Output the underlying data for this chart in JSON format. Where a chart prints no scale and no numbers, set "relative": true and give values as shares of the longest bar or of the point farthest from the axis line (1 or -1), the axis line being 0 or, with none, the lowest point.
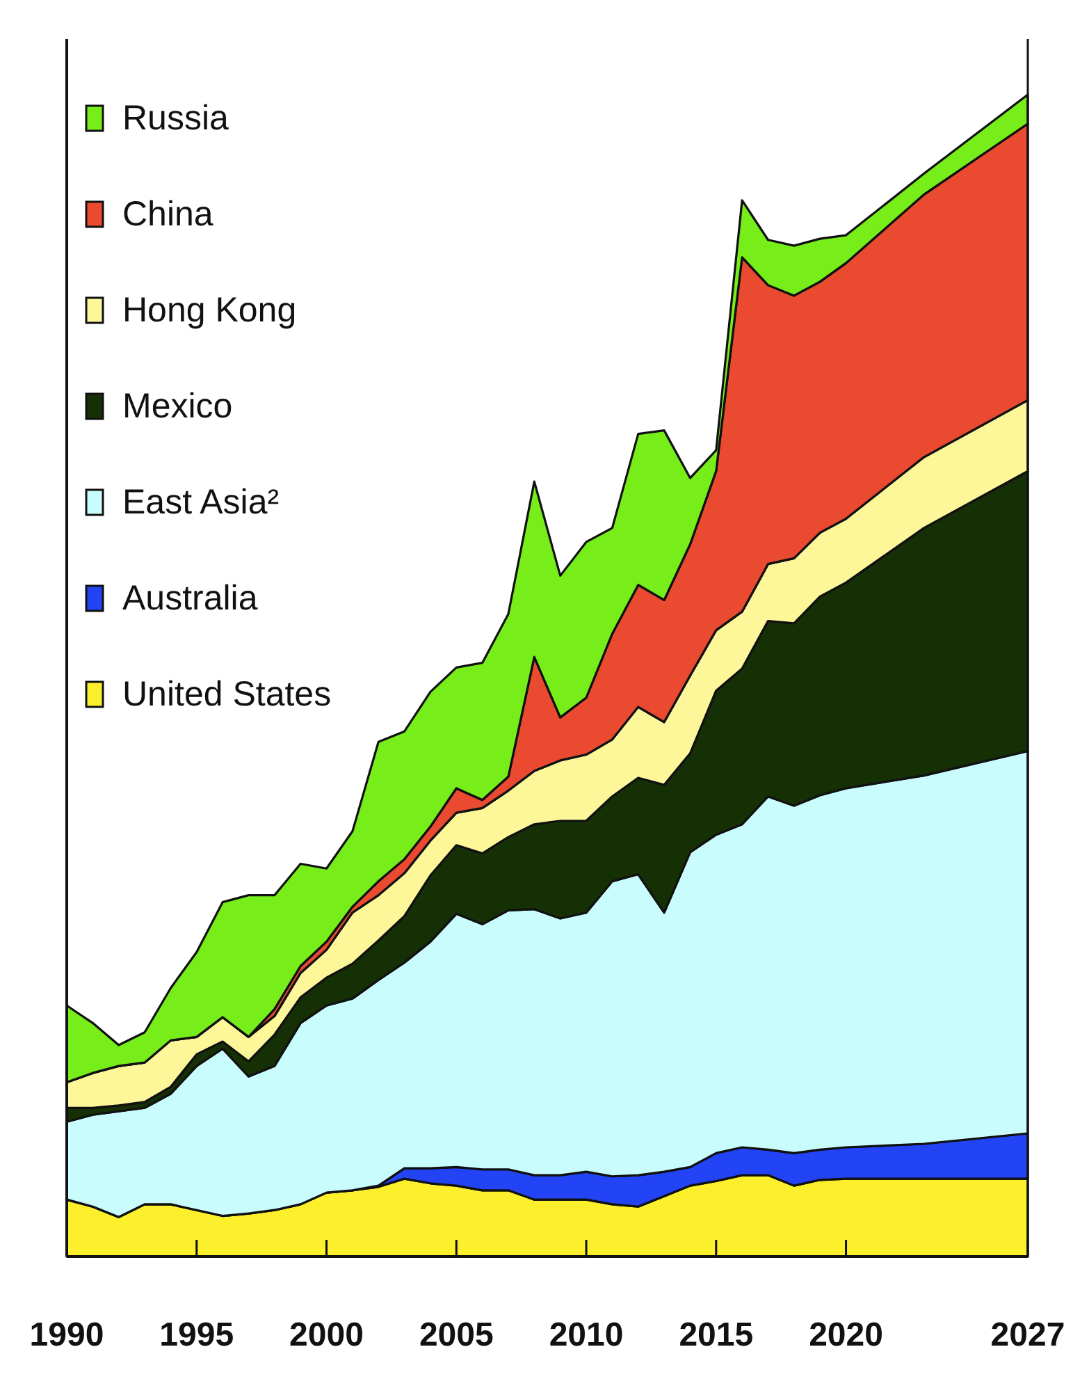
{
  "chart_data": {
    "type": "area",
    "stacked": true,
    "relative": true,
    "legend": "top left",
    "x": [
      1990,
      1991,
      1992,
      1993,
      1994,
      1995,
      1996,
      1997,
      1998,
      1999,
      2000,
      2001,
      2002,
      2003,
      2004,
      2005,
      2006,
      2007,
      2008,
      2009,
      2010,
      2011,
      2012,
      2013,
      2014,
      2015,
      2016,
      2017,
      2018,
      2019,
      2020,
      2023,
      2027
    ],
    "xlim": [
      1990,
      2027
    ],
    "xticks": [
      1990,
      1995,
      2000,
      2005,
      2010,
      2015,
      2020,
      2027
    ],
    "series": [
      {
        "name": "United States",
        "color": "#fcef2c",
        "values": [
          0.049,
          0.043,
          0.034,
          0.045,
          0.045,
          0.04,
          0.035,
          0.037,
          0.04,
          0.045,
          0.055,
          0.057,
          0.06,
          0.067,
          0.063,
          0.061,
          0.057,
          0.057,
          0.049,
          0.049,
          0.049,
          0.045,
          0.043,
          0.052,
          0.061,
          0.065,
          0.07,
          0.07,
          0.061,
          0.066,
          0.067,
          0.067,
          0.067
        ]
      },
      {
        "name": "Australia",
        "color": "#2244f5",
        "values": [
          0,
          0,
          0,
          0,
          0,
          0,
          0,
          0,
          0,
          0,
          0,
          0,
          0.001,
          0.009,
          0.013,
          0.016,
          0.018,
          0.018,
          0.021,
          0.021,
          0.024,
          0.024,
          0.027,
          0.021,
          0.016,
          0.024,
          0.024,
          0.022,
          0.028,
          0.026,
          0.027,
          0.03,
          0.039
        ]
      },
      {
        "name": "East Asia²",
        "color": "#c8fcfd",
        "values": [
          0.067,
          0.079,
          0.091,
          0.083,
          0.095,
          0.124,
          0.144,
          0.118,
          0.124,
          0.156,
          0.161,
          0.165,
          0.177,
          0.177,
          0.195,
          0.218,
          0.211,
          0.223,
          0.229,
          0.221,
          0.223,
          0.254,
          0.259,
          0.223,
          0.271,
          0.274,
          0.278,
          0.304,
          0.299,
          0.305,
          0.309,
          0.317,
          0.329
        ]
      },
      {
        "name": "Mexico",
        "color": "#163006",
        "values": [
          0.012,
          0.006,
          0.005,
          0.005,
          0.006,
          0.01,
          0.006,
          0.013,
          0.027,
          0.022,
          0.024,
          0.03,
          0.034,
          0.04,
          0.057,
          0.059,
          0.061,
          0.063,
          0.073,
          0.084,
          0.079,
          0.073,
          0.083,
          0.11,
          0.085,
          0.124,
          0.134,
          0.151,
          0.157,
          0.171,
          0.177,
          0.213,
          0.241
        ]
      },
      {
        "name": "Hong Kong",
        "color": "#fdf79a",
        "values": [
          0.022,
          0.03,
          0.034,
          0.034,
          0.04,
          0.015,
          0.021,
          0.021,
          0.016,
          0.021,
          0.024,
          0.044,
          0.039,
          0.037,
          0.03,
          0.028,
          0.039,
          0.04,
          0.046,
          0.052,
          0.057,
          0.049,
          0.061,
          0.054,
          0.067,
          0.052,
          0.049,
          0.049,
          0.056,
          0.055,
          0.055,
          0.061,
          0.061
        ]
      },
      {
        "name": "China",
        "color": "#e94a30",
        "values": [
          0,
          0,
          0,
          0,
          0,
          0,
          0,
          0,
          0.006,
          0.006,
          0.007,
          0.005,
          0.012,
          0.012,
          0.012,
          0.021,
          0.007,
          0.012,
          0.098,
          0.037,
          0.049,
          0.091,
          0.105,
          0.105,
          0.113,
          0.137,
          0.305,
          0.24,
          0.226,
          0.216,
          0.22,
          0.226,
          0.238
        ]
      },
      {
        "name": "Russia",
        "color": "#77ee1a",
        "values": [
          0.066,
          0.043,
          0.018,
          0.026,
          0.045,
          0.073,
          0.099,
          0.122,
          0.098,
          0.088,
          0.063,
          0.065,
          0.12,
          0.11,
          0.116,
          0.104,
          0.118,
          0.14,
          0.151,
          0.122,
          0.134,
          0.091,
          0.13,
          0.146,
          0.057,
          0.018,
          0.049,
          0.039,
          0.043,
          0.037,
          0.024,
          0.018,
          0.025
        ]
      }
    ]
  }
}
